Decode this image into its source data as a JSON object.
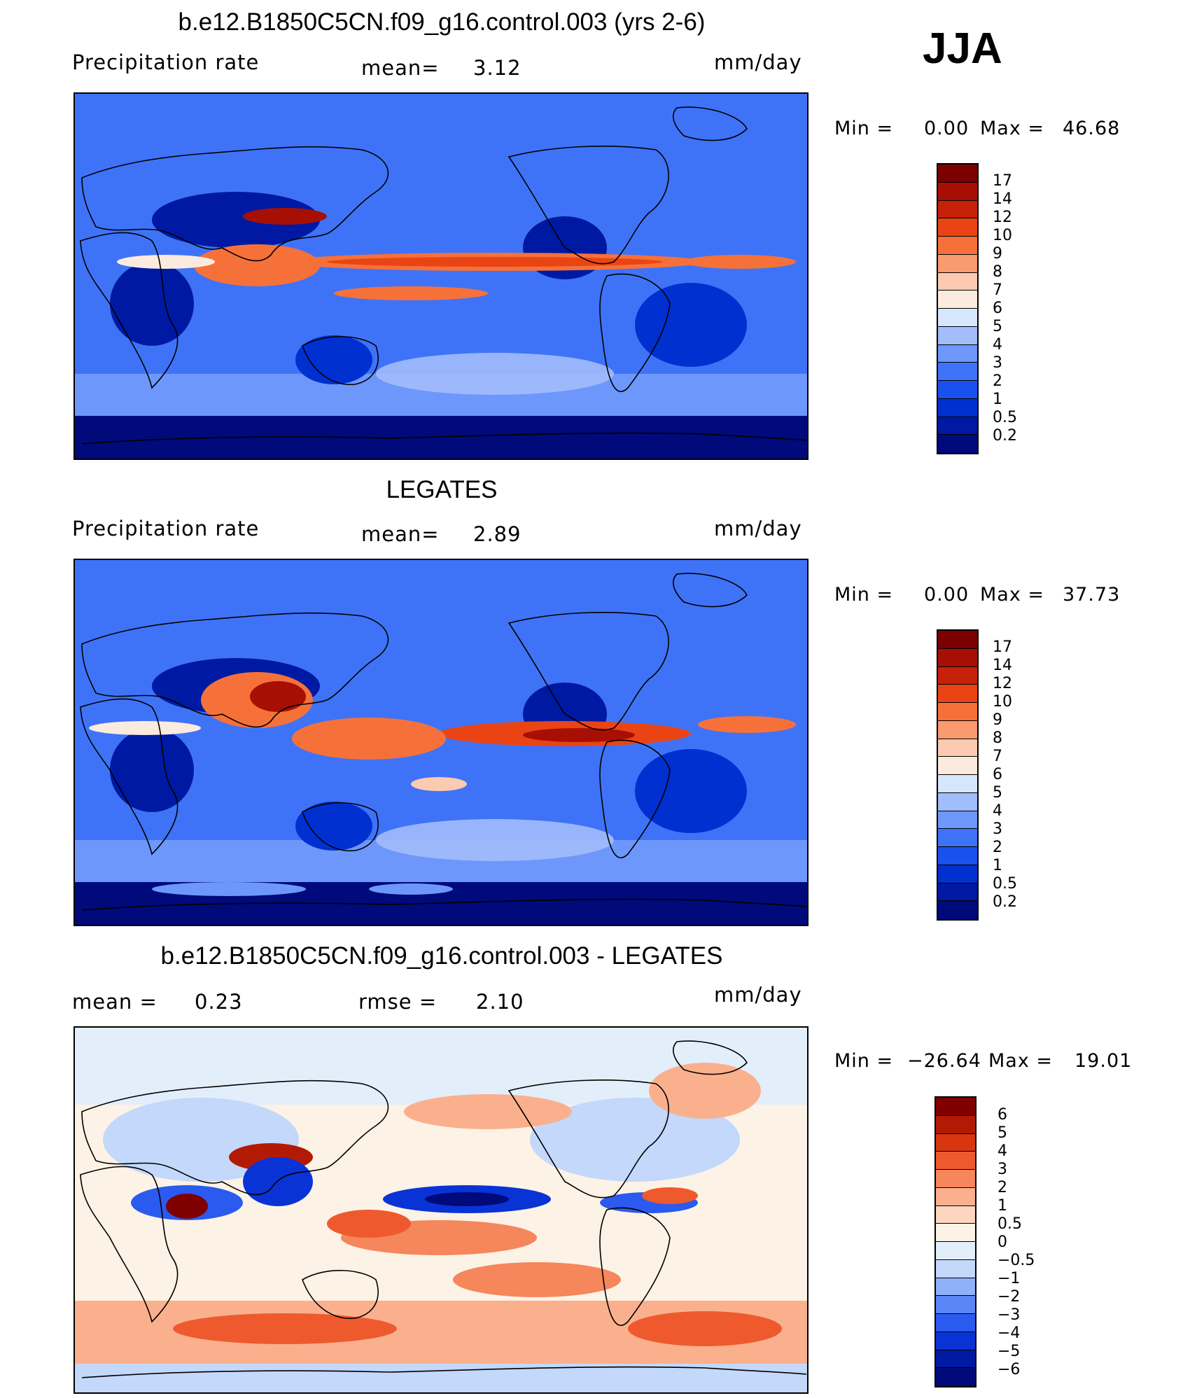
{
  "season": "JJA",
  "palette": {
    "precip": [
      "#000a7a",
      "#0019a3",
      "#0030d0",
      "#1a50ee",
      "#3f73f7",
      "#6d97fb",
      "#a2bdfc",
      "#d6e6fb",
      "#fbeade",
      "#fbcab0",
      "#fa9a6f",
      "#f67139",
      "#ea4415",
      "#c82109",
      "#a80f04",
      "#7b0000"
    ],
    "diff": [
      "#000a7a",
      "#0019a3",
      "#0a33d6",
      "#2a5aef",
      "#5a86f7",
      "#8fb0fb",
      "#c3d8fb",
      "#e3eefb",
      "#fdf2e6",
      "#fcd6bf",
      "#fab08d",
      "#f6865b",
      "#ee5a2e",
      "#d8360f",
      "#b31a05",
      "#800000"
    ]
  },
  "panels": [
    {
      "title": "b.e12.B1850C5CN.f09_g16.control.003 (yrs 2-6)",
      "left": "Precipitation  rate",
      "center_label": "mean=",
      "center_value": "3.12",
      "units": "mm/day",
      "min_label": "Min  =",
      "min_value": "0.00",
      "max_label": "Max  =",
      "max_value": "46.68",
      "colorbar": [
        "17",
        "14",
        "12",
        "10",
        "9",
        "8",
        "7",
        "6",
        "5",
        "4",
        "3",
        "2",
        "1",
        "0.5",
        "0.2"
      ]
    },
    {
      "title": "LEGATES",
      "left": "Precipitation  rate",
      "center_label": "mean=",
      "center_value": "2.89",
      "units": "mm/day",
      "min_label": "Min  =",
      "min_value": "0.00",
      "max_label": "Max  =",
      "max_value": "37.73",
      "colorbar": [
        "17",
        "14",
        "12",
        "10",
        "9",
        "8",
        "7",
        "6",
        "5",
        "4",
        "3",
        "2",
        "1",
        "0.5",
        "0.2"
      ]
    },
    {
      "title": "b.e12.B1850C5CN.f09_g16.control.003 - LEGATES",
      "left_label": "mean  =",
      "left_value": "0.23",
      "center_label": "rmse  =",
      "center_value": "2.10",
      "units": "mm/day",
      "min_label": "Min  =",
      "min_value": "−26.64",
      "max_label": "Max  =",
      "max_value": "19.01",
      "colorbar": [
        "6",
        "5",
        "4",
        "3",
        "2",
        "1",
        "0.5",
        "0",
        "−0.5",
        "−1",
        "−2",
        "−3",
        "−4",
        "−5",
        "−6"
      ]
    }
  ]
}
